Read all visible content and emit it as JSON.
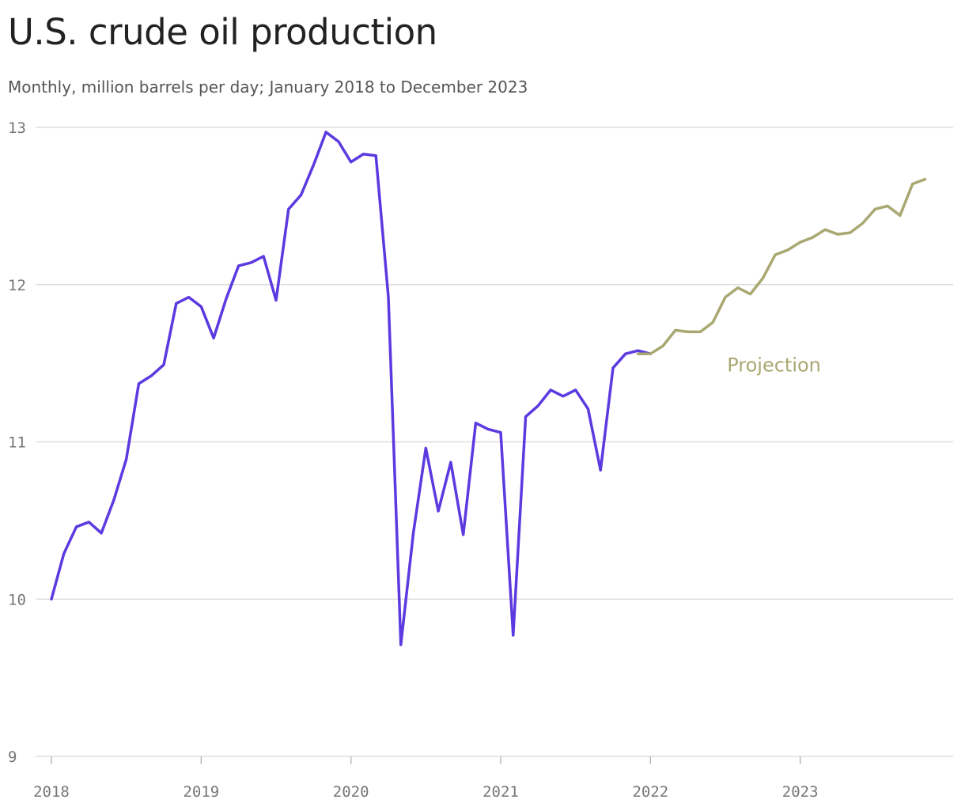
{
  "title": "U.S. crude oil production",
  "subtitle": "Monthly, million barrels per day; January 2018 to December 2023",
  "colors": {
    "actual": "#5b3ae0",
    "projection": "#a9a872",
    "grid": "#dddddd",
    "tick_text": "#777777"
  },
  "chart_data": {
    "type": "line",
    "title": "U.S. crude oil production",
    "subtitle": "Monthly, million barrels per day; January 2018 to December 2023",
    "ylim": [
      9,
      13
    ],
    "yticks": [
      9,
      10,
      11,
      12,
      13
    ],
    "xlim": [
      2018,
      2024
    ],
    "xticks": [
      2018,
      2019,
      2020,
      2021,
      2022,
      2023
    ],
    "grid": true,
    "annotations": [
      {
        "text": "Projection",
        "series": "projection"
      }
    ],
    "series": [
      {
        "id": "actual",
        "start": "2018-01",
        "values": [
          10.0,
          10.29,
          10.46,
          10.49,
          10.42,
          10.63,
          10.89,
          11.37,
          11.42,
          11.49,
          11.88,
          11.92,
          11.86,
          11.66,
          11.91,
          12.12,
          12.14,
          12.18,
          11.9,
          12.48,
          12.57,
          12.76,
          12.97,
          12.91,
          12.78,
          12.83,
          12.82,
          11.92,
          9.71,
          10.42,
          10.96,
          10.56,
          10.87,
          10.41,
          11.12,
          11.08,
          11.06,
          9.77,
          11.16,
          11.23,
          11.33,
          11.29,
          11.33,
          11.21,
          10.82,
          11.47,
          11.56,
          11.58,
          11.56
        ]
      },
      {
        "id": "projection",
        "start": "2021-12",
        "values": [
          11.56,
          11.56,
          11.61,
          11.71,
          11.7,
          11.7,
          11.76,
          11.92,
          11.98,
          11.94,
          12.04,
          12.19,
          12.22,
          12.27,
          12.3,
          12.35,
          12.32,
          12.33,
          12.39,
          12.48,
          12.5,
          12.44,
          12.64,
          12.67
        ]
      }
    ]
  }
}
